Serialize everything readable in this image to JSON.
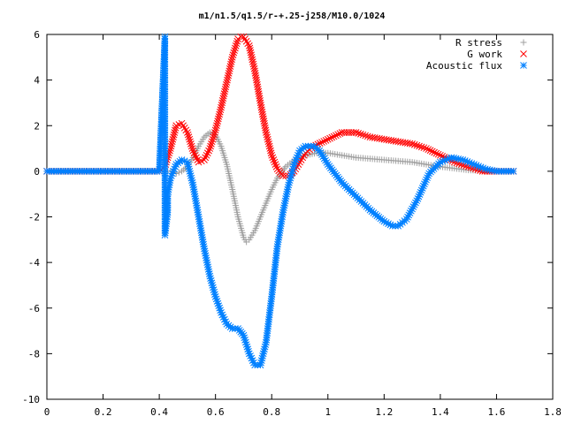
{
  "chart_data": {
    "type": "scatter",
    "title": "m1/n1.5/q1.5/r-+.25-j258/M10.0/1024",
    "xlabel": "",
    "ylabel": "",
    "xlim": [
      0,
      1.8
    ],
    "ylim": [
      -10,
      6
    ],
    "x_ticks": [
      "0",
      "0.2",
      "0.4",
      "0.6",
      "0.8",
      "1",
      "1.2",
      "1.4",
      "1.6",
      "1.8"
    ],
    "y_ticks": [
      "6",
      "4",
      "2",
      "0",
      "-2",
      "-4",
      "-6",
      "-8",
      "-10"
    ],
    "grid": false,
    "legend_position": "top-right",
    "series": [
      {
        "name": "R stress",
        "marker": "+",
        "color": "#a0a0a0",
        "points": [
          [
            0.0,
            0.0
          ],
          [
            0.1,
            0.0
          ],
          [
            0.2,
            0.0
          ],
          [
            0.3,
            0.0
          ],
          [
            0.4,
            0.0
          ],
          [
            0.42,
            0.0
          ],
          [
            0.44,
            0.0
          ],
          [
            0.46,
            -0.1
          ],
          [
            0.48,
            0.0
          ],
          [
            0.5,
            0.2
          ],
          [
            0.52,
            0.6
          ],
          [
            0.54,
            1.1
          ],
          [
            0.56,
            1.5
          ],
          [
            0.58,
            1.7
          ],
          [
            0.6,
            1.6
          ],
          [
            0.62,
            1.1
          ],
          [
            0.64,
            0.3
          ],
          [
            0.66,
            -0.8
          ],
          [
            0.68,
            -2.0
          ],
          [
            0.7,
            -2.9
          ],
          [
            0.71,
            -3.1
          ],
          [
            0.72,
            -3.0
          ],
          [
            0.74,
            -2.6
          ],
          [
            0.76,
            -2.0
          ],
          [
            0.78,
            -1.4
          ],
          [
            0.8,
            -0.8
          ],
          [
            0.82,
            -0.3
          ],
          [
            0.85,
            0.2
          ],
          [
            0.88,
            0.5
          ],
          [
            0.92,
            0.7
          ],
          [
            0.96,
            0.8
          ],
          [
            1.0,
            0.8
          ],
          [
            1.05,
            0.7
          ],
          [
            1.1,
            0.6
          ],
          [
            1.2,
            0.5
          ],
          [
            1.3,
            0.4
          ],
          [
            1.4,
            0.2
          ],
          [
            1.5,
            0.05
          ],
          [
            1.6,
            0.0
          ],
          [
            1.66,
            0.0
          ]
        ]
      },
      {
        "name": "G work",
        "marker": "x",
        "color": "#ff0000",
        "points": [
          [
            0.0,
            0.0
          ],
          [
            0.1,
            0.0
          ],
          [
            0.2,
            0.0
          ],
          [
            0.3,
            0.0
          ],
          [
            0.4,
            0.0
          ],
          [
            0.42,
            0.2
          ],
          [
            0.44,
            1.0
          ],
          [
            0.46,
            2.0
          ],
          [
            0.48,
            2.1
          ],
          [
            0.5,
            1.7
          ],
          [
            0.52,
            0.9
          ],
          [
            0.54,
            0.4
          ],
          [
            0.56,
            0.5
          ],
          [
            0.58,
            1.0
          ],
          [
            0.6,
            1.8
          ],
          [
            0.62,
            2.8
          ],
          [
            0.64,
            3.9
          ],
          [
            0.66,
            5.0
          ],
          [
            0.68,
            5.8
          ],
          [
            0.69,
            5.9
          ],
          [
            0.7,
            5.9
          ],
          [
            0.72,
            5.5
          ],
          [
            0.74,
            4.4
          ],
          [
            0.76,
            3.0
          ],
          [
            0.78,
            1.7
          ],
          [
            0.8,
            0.7
          ],
          [
            0.82,
            0.1
          ],
          [
            0.84,
            -0.2
          ],
          [
            0.86,
            -0.2
          ],
          [
            0.88,
            0.0
          ],
          [
            0.9,
            0.4
          ],
          [
            0.92,
            0.8
          ],
          [
            0.95,
            1.1
          ],
          [
            1.0,
            1.4
          ],
          [
            1.05,
            1.7
          ],
          [
            1.1,
            1.7
          ],
          [
            1.15,
            1.5
          ],
          [
            1.2,
            1.4
          ],
          [
            1.25,
            1.3
          ],
          [
            1.3,
            1.2
          ],
          [
            1.35,
            1.0
          ],
          [
            1.4,
            0.7
          ],
          [
            1.45,
            0.4
          ],
          [
            1.5,
            0.2
          ],
          [
            1.55,
            0.0
          ],
          [
            1.6,
            0.0
          ],
          [
            1.66,
            0.0
          ]
        ]
      },
      {
        "name": "Acoustic flux",
        "marker": "*",
        "color": "#0080ff",
        "points": [
          [
            0.0,
            0.0
          ],
          [
            0.1,
            0.0
          ],
          [
            0.2,
            0.0
          ],
          [
            0.3,
            0.0
          ],
          [
            0.4,
            0.0
          ],
          [
            0.42,
            5.9
          ],
          [
            0.42,
            3.9
          ],
          [
            0.42,
            1.7
          ],
          [
            0.42,
            1.3
          ],
          [
            0.42,
            0.2
          ],
          [
            0.42,
            -0.4
          ],
          [
            0.42,
            -0.8
          ],
          [
            0.42,
            -1.8
          ],
          [
            0.42,
            -2.8
          ],
          [
            0.43,
            -1.8
          ],
          [
            0.43,
            -1.0
          ],
          [
            0.44,
            -0.3
          ],
          [
            0.45,
            0.0
          ],
          [
            0.46,
            0.3
          ],
          [
            0.48,
            0.5
          ],
          [
            0.5,
            0.4
          ],
          [
            0.52,
            -0.6
          ],
          [
            0.54,
            -2.0
          ],
          [
            0.56,
            -3.4
          ],
          [
            0.58,
            -4.6
          ],
          [
            0.6,
            -5.5
          ],
          [
            0.62,
            -6.2
          ],
          [
            0.64,
            -6.7
          ],
          [
            0.66,
            -6.9
          ],
          [
            0.68,
            -6.9
          ],
          [
            0.7,
            -7.2
          ],
          [
            0.72,
            -8.0
          ],
          [
            0.74,
            -8.5
          ],
          [
            0.76,
            -8.5
          ],
          [
            0.78,
            -7.5
          ],
          [
            0.8,
            -5.5
          ],
          [
            0.82,
            -3.3
          ],
          [
            0.84,
            -1.8
          ],
          [
            0.86,
            -0.6
          ],
          [
            0.88,
            0.3
          ],
          [
            0.9,
            0.9
          ],
          [
            0.92,
            1.1
          ],
          [
            0.95,
            1.1
          ],
          [
            0.97,
            0.9
          ],
          [
            1.0,
            0.3
          ],
          [
            1.05,
            -0.5
          ],
          [
            1.1,
            -1.1
          ],
          [
            1.15,
            -1.7
          ],
          [
            1.2,
            -2.2
          ],
          [
            1.23,
            -2.4
          ],
          [
            1.25,
            -2.4
          ],
          [
            1.28,
            -2.1
          ],
          [
            1.32,
            -1.2
          ],
          [
            1.36,
            -0.1
          ],
          [
            1.4,
            0.4
          ],
          [
            1.44,
            0.6
          ],
          [
            1.48,
            0.5
          ],
          [
            1.52,
            0.3
          ],
          [
            1.56,
            0.1
          ],
          [
            1.6,
            0.0
          ],
          [
            1.66,
            0.0
          ]
        ]
      }
    ]
  }
}
